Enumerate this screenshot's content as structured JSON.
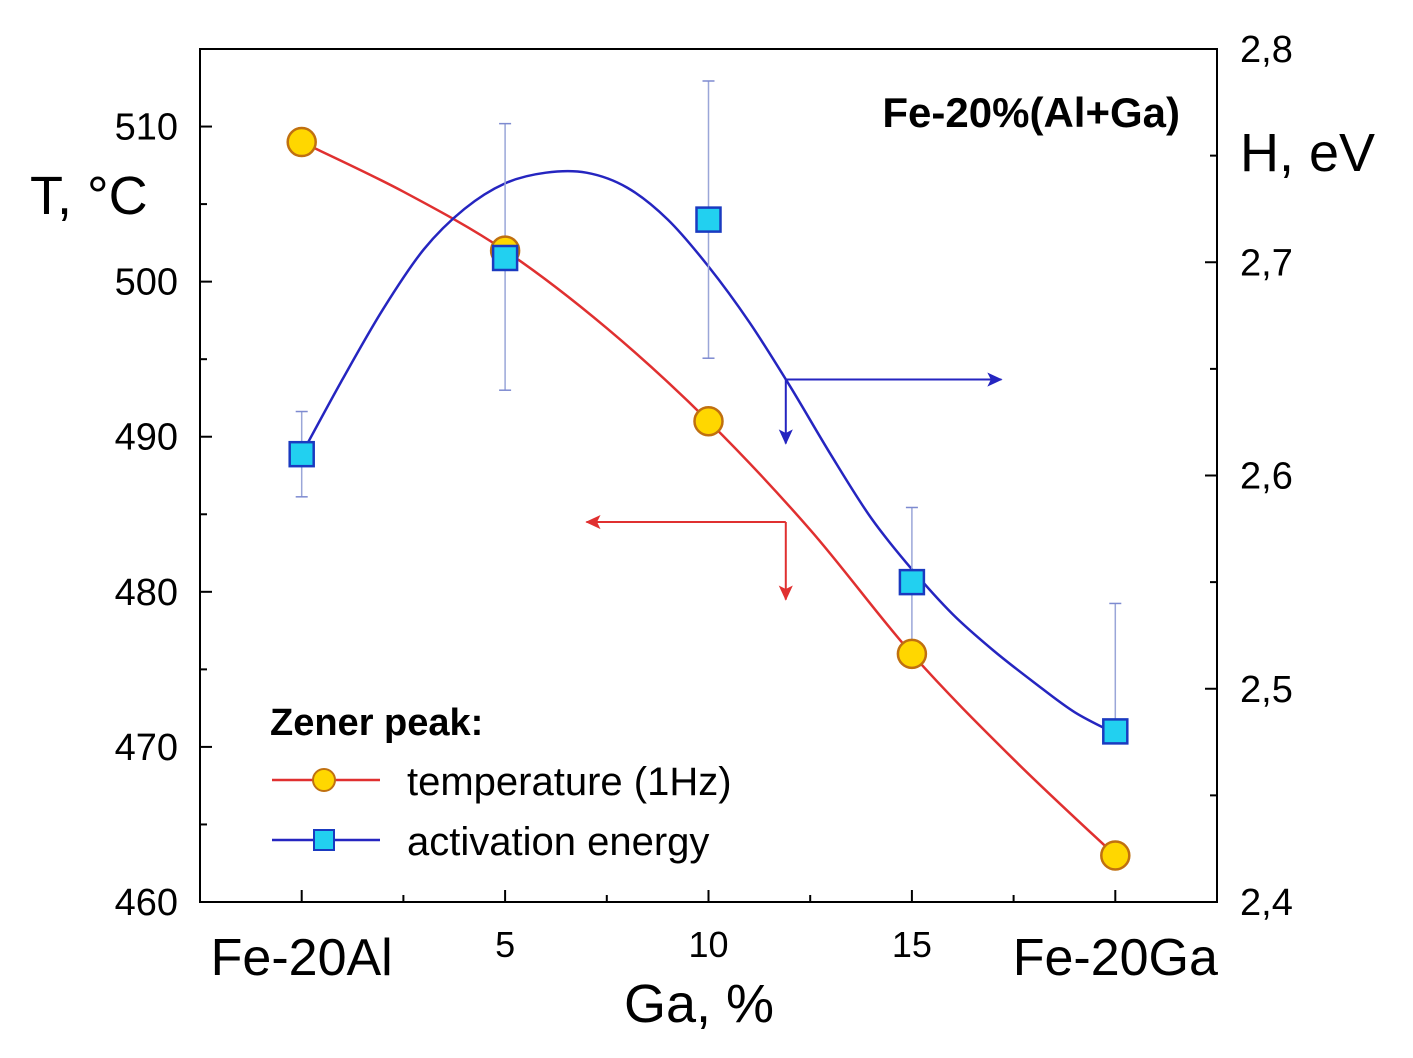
{
  "chart_data": {
    "type": "line",
    "annotation": "Fe-20%(Al+Ga)",
    "xlabel": "Ga, %",
    "ylabel_left": "T, °C",
    "ylabel_right": "H, eV",
    "xlim": [
      -2.5,
      22.5
    ],
    "ylim_left": [
      460,
      515
    ],
    "ylim_right": [
      2.4,
      2.8
    ],
    "x_ticks": [
      {
        "value": 0,
        "label": "Fe-20Al",
        "size": "large"
      },
      {
        "value": 5,
        "label": "5",
        "size": "small"
      },
      {
        "value": 10,
        "label": "10",
        "size": "small"
      },
      {
        "value": 15,
        "label": "15",
        "size": "small"
      },
      {
        "value": 20,
        "label": "Fe-20Ga",
        "size": "large"
      }
    ],
    "x_minor_ticks": [
      2.5,
      7.5,
      12.5,
      17.5
    ],
    "y_left_ticks": [
      460,
      470,
      480,
      490,
      500,
      510
    ],
    "y_right_ticks": [
      {
        "value": 2.4,
        "label": "2,4"
      },
      {
        "value": 2.5,
        "label": "2,5"
      },
      {
        "value": 2.6,
        "label": "2,6"
      },
      {
        "value": 2.7,
        "label": "2,7"
      },
      {
        "value": 2.8,
        "label": "2,8"
      }
    ],
    "legend": {
      "title": "Zener peak:",
      "position": "bottom-left",
      "entries": [
        "temperature (1Hz)",
        "activation energy"
      ]
    },
    "series": [
      {
        "name": "temperature (1Hz)",
        "axis": "left",
        "color": "#e03030",
        "marker": "circle",
        "marker_fill": "#ffd700",
        "marker_stroke": "#c07010",
        "x": [
          0,
          5,
          10,
          15,
          20
        ],
        "y": [
          509,
          502,
          491,
          476,
          463
        ],
        "fit_curve": [
          [
            0,
            509
          ],
          [
            2.5,
            505.8
          ],
          [
            5,
            502
          ],
          [
            7.5,
            497
          ],
          [
            10,
            491
          ],
          [
            12.5,
            484
          ],
          [
            15,
            476
          ],
          [
            17.5,
            469.2
          ],
          [
            20,
            463
          ]
        ]
      },
      {
        "name": "activation energy",
        "axis": "right",
        "color": "#2525c0",
        "marker": "square",
        "marker_fill": "#22d0f0",
        "marker_stroke": "#1a3ac0",
        "x": [
          0,
          5,
          10,
          15,
          20
        ],
        "y": [
          2.61,
          2.702,
          2.72,
          2.55,
          2.48
        ],
        "err_upper": [
          2.63,
          2.765,
          2.785,
          2.585,
          2.54
        ],
        "err_lower": [
          2.59,
          2.64,
          2.655,
          2.52,
          2.48
        ],
        "fit_curve": [
          [
            0,
            2.61
          ],
          [
            1,
            2.645
          ],
          [
            2,
            2.678
          ],
          [
            3,
            2.706
          ],
          [
            4,
            2.725
          ],
          [
            5,
            2.737
          ],
          [
            6,
            2.742
          ],
          [
            7,
            2.742
          ],
          [
            8,
            2.735
          ],
          [
            9,
            2.72
          ],
          [
            10,
            2.698
          ],
          [
            11,
            2.672
          ],
          [
            12,
            2.642
          ],
          [
            13,
            2.61
          ],
          [
            14,
            2.58
          ],
          [
            15,
            2.556
          ],
          [
            16,
            2.535
          ],
          [
            17,
            2.518
          ],
          [
            18,
            2.503
          ],
          [
            19,
            2.489
          ],
          [
            20,
            2.479
          ]
        ]
      }
    ],
    "axis_arrows": [
      {
        "series": "activation energy",
        "at": [
          11.9,
          2.645
        ],
        "to": "right",
        "to_x": 17.2,
        "down_to": 2.615
      },
      {
        "series": "temperature (1Hz)",
        "at": [
          11.9,
          484.5
        ],
        "to": "left",
        "to_x": 7.0,
        "down_to": 479.5
      }
    ]
  }
}
